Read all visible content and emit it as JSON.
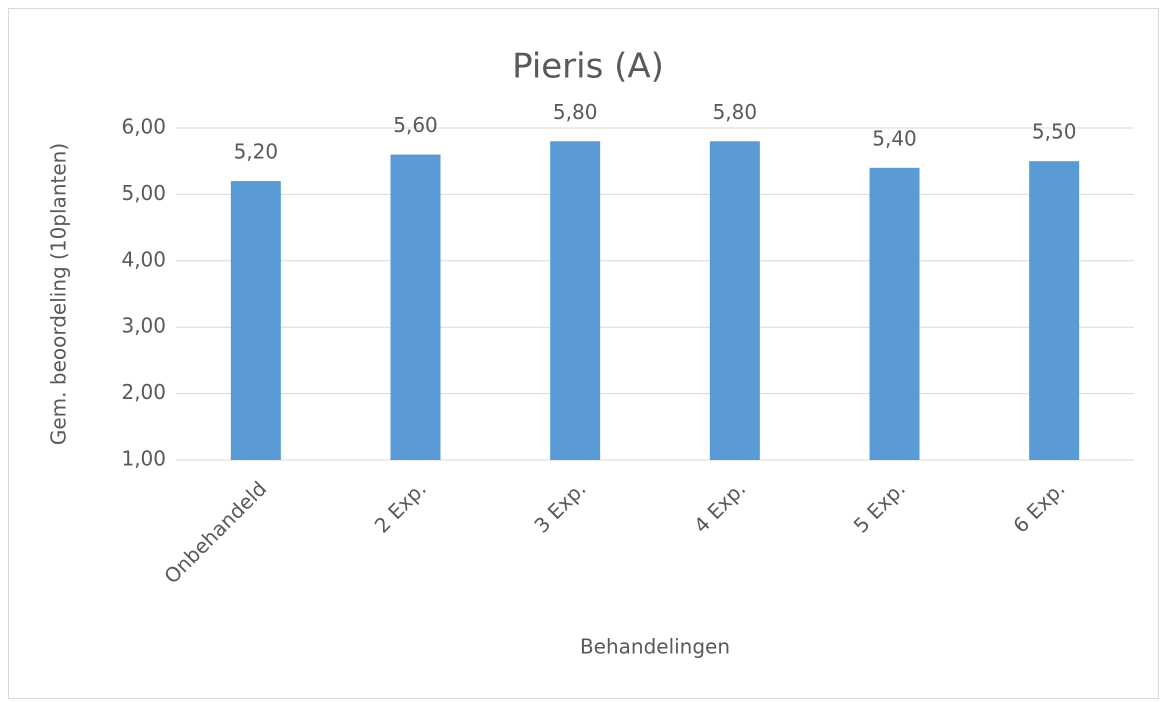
{
  "chart_data": {
    "type": "bar",
    "title": "Pieris (A)",
    "x_label": "Behandelingen",
    "y_label": "Gem. beoordeling (10planten)",
    "categories": [
      "Onbehandeld",
      "2 Exp.",
      "3 Exp.",
      "4 Exp.",
      "5 Exp.",
      "6 Exp."
    ],
    "values": [
      5.2,
      5.6,
      5.8,
      5.8,
      5.4,
      5.5
    ],
    "value_labels": [
      "5,20",
      "5,60",
      "5,80",
      "5,80",
      "5,40",
      "5,50"
    ],
    "color": "#5b9bd5",
    "ylim": [
      1,
      6
    ],
    "yticks": [
      {
        "value": 1,
        "label": "1,00"
      },
      {
        "value": 2,
        "label": "2,00"
      },
      {
        "value": 3,
        "label": "3,00"
      },
      {
        "value": 4,
        "label": "4,00"
      },
      {
        "value": 5,
        "label": "5,00"
      },
      {
        "value": 6,
        "label": "6,00"
      }
    ],
    "grid": true
  }
}
